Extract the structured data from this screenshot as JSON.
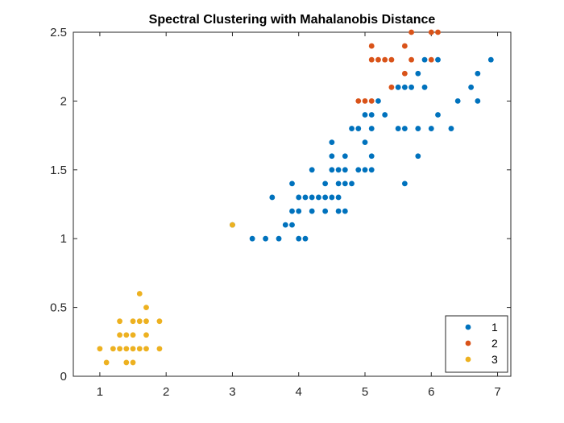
{
  "chart_data": {
    "type": "scatter",
    "title": "Spectral Clustering with Mahalanobis Distance",
    "xlabel": "",
    "ylabel": "",
    "xlim": [
      0.6,
      7.2
    ],
    "ylim": [
      0,
      2.5
    ],
    "xticks": [
      1,
      2,
      3,
      4,
      5,
      6,
      7
    ],
    "yticks": [
      0,
      0.5,
      1,
      1.5,
      2,
      2.5
    ],
    "xtick_labels": [
      "1",
      "2",
      "3",
      "4",
      "5",
      "6",
      "7"
    ],
    "ytick_labels": [
      "0",
      "0.5",
      "1",
      "1.5",
      "2",
      "2.5"
    ],
    "grid": false,
    "legend_position": "bottom-right",
    "series": [
      {
        "name": "1",
        "color": "#0072BD",
        "points": [
          [
            3.3,
            1.0
          ],
          [
            3.5,
            1.0
          ],
          [
            3.7,
            1.0
          ],
          [
            4.0,
            1.0
          ],
          [
            4.1,
            1.0
          ],
          [
            3.8,
            1.1
          ],
          [
            3.9,
            1.1
          ],
          [
            3.0,
            1.1
          ],
          [
            3.9,
            1.2
          ],
          [
            4.0,
            1.2
          ],
          [
            4.2,
            1.2
          ],
          [
            4.4,
            1.2
          ],
          [
            4.7,
            1.2
          ],
          [
            4.6,
            1.2
          ],
          [
            3.6,
            1.3
          ],
          [
            4.0,
            1.3
          ],
          [
            4.1,
            1.3
          ],
          [
            4.2,
            1.3
          ],
          [
            4.3,
            1.3
          ],
          [
            4.4,
            1.3
          ],
          [
            4.5,
            1.3
          ],
          [
            4.6,
            1.3
          ],
          [
            3.9,
            1.4
          ],
          [
            4.4,
            1.4
          ],
          [
            4.6,
            1.4
          ],
          [
            4.7,
            1.4
          ],
          [
            4.8,
            1.4
          ],
          [
            5.6,
            1.4
          ],
          [
            4.2,
            1.5
          ],
          [
            4.5,
            1.5
          ],
          [
            4.6,
            1.5
          ],
          [
            4.7,
            1.5
          ],
          [
            4.9,
            1.5
          ],
          [
            5.0,
            1.5
          ],
          [
            5.1,
            1.5
          ],
          [
            4.5,
            1.6
          ],
          [
            4.7,
            1.6
          ],
          [
            5.1,
            1.6
          ],
          [
            5.8,
            1.6
          ],
          [
            4.5,
            1.7
          ],
          [
            5.0,
            1.7
          ],
          [
            4.8,
            1.8
          ],
          [
            4.9,
            1.8
          ],
          [
            5.1,
            1.8
          ],
          [
            5.5,
            1.8
          ],
          [
            5.6,
            1.8
          ],
          [
            5.8,
            1.8
          ],
          [
            6.0,
            1.8
          ],
          [
            6.3,
            1.8
          ],
          [
            5.0,
            1.9
          ],
          [
            5.1,
            1.9
          ],
          [
            5.3,
            1.9
          ],
          [
            6.1,
            1.9
          ],
          [
            5.2,
            2.0
          ],
          [
            6.4,
            2.0
          ],
          [
            6.7,
            2.0
          ],
          [
            5.5,
            2.1
          ],
          [
            5.6,
            2.1
          ],
          [
            5.7,
            2.1
          ],
          [
            5.9,
            2.1
          ],
          [
            6.6,
            2.1
          ],
          [
            5.8,
            2.2
          ],
          [
            6.7,
            2.2
          ],
          [
            6.1,
            2.3
          ],
          [
            5.9,
            2.3
          ],
          [
            6.9,
            2.3
          ]
        ]
      },
      {
        "name": "2",
        "color": "#D95319",
        "points": [
          [
            4.9,
            2.0
          ],
          [
            5.0,
            2.0
          ],
          [
            5.1,
            2.0
          ],
          [
            5.4,
            2.1
          ],
          [
            5.6,
            2.2
          ],
          [
            5.1,
            2.3
          ],
          [
            5.2,
            2.3
          ],
          [
            5.3,
            2.3
          ],
          [
            5.4,
            2.3
          ],
          [
            5.7,
            2.3
          ],
          [
            6.0,
            2.3
          ],
          [
            5.1,
            2.4
          ],
          [
            5.6,
            2.4
          ],
          [
            5.7,
            2.5
          ],
          [
            6.0,
            2.5
          ],
          [
            6.1,
            2.5
          ]
        ]
      },
      {
        "name": "3",
        "color": "#EDB120",
        "points": [
          [
            1.1,
            0.1
          ],
          [
            1.4,
            0.1
          ],
          [
            1.5,
            0.1
          ],
          [
            1.0,
            0.2
          ],
          [
            1.2,
            0.2
          ],
          [
            1.3,
            0.2
          ],
          [
            1.4,
            0.2
          ],
          [
            1.5,
            0.2
          ],
          [
            1.6,
            0.2
          ],
          [
            1.7,
            0.2
          ],
          [
            1.9,
            0.2
          ],
          [
            1.3,
            0.3
          ],
          [
            1.4,
            0.3
          ],
          [
            1.5,
            0.3
          ],
          [
            1.7,
            0.3
          ],
          [
            1.3,
            0.4
          ],
          [
            1.5,
            0.4
          ],
          [
            1.6,
            0.4
          ],
          [
            1.7,
            0.4
          ],
          [
            1.9,
            0.4
          ],
          [
            1.7,
            0.5
          ],
          [
            1.6,
            0.6
          ],
          [
            3.0,
            1.1
          ]
        ]
      }
    ]
  }
}
